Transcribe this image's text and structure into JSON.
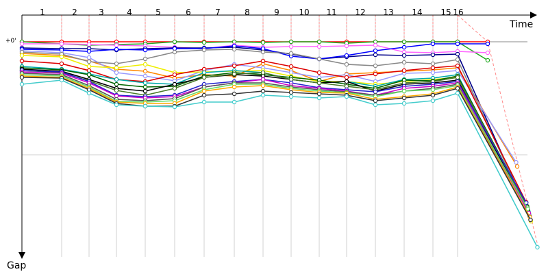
{
  "chart_data": {
    "type": "line",
    "title": "",
    "xlabel": "Time",
    "ylabel": "Gap",
    "zero_label": "+0'",
    "lap_labels": [
      "1",
      "2",
      "3",
      "4",
      "5",
      "6",
      "7",
      "8",
      "9",
      "10",
      "11",
      "12",
      "13",
      "14",
      "15",
      "16"
    ],
    "grid": true,
    "ylim": [
      0,
      3
    ],
    "leader_series_color": "#ff8888",
    "series": [
      {
        "color": "#ff0000",
        "values": [
          0.0,
          0.0,
          0.0,
          0.0,
          0.0,
          0.0,
          0.0,
          0.0,
          0.0,
          0.0,
          0.0,
          0.0,
          0.0,
          0.0,
          0.0,
          0.0,
          0.0
        ]
      },
      {
        "color": "#22aa22",
        "values": [
          0.0,
          0.03,
          0.05,
          0.04,
          0.03,
          0.0,
          0.01,
          0.0,
          0.01,
          0.0,
          0.0,
          0.02,
          0.0,
          0.0,
          0.0,
          0.0,
          0.27
        ]
      },
      {
        "color": "#ff66ff",
        "values": [
          0.03,
          0.03,
          0.04,
          0.05,
          0.06,
          0.08,
          0.1,
          0.05,
          0.08,
          0.07,
          0.07,
          0.06,
          0.05,
          0.15,
          0.16,
          0.14,
          0.16
        ]
      },
      {
        "color": "#000088",
        "values": [
          0.09,
          0.1,
          0.1,
          0.12,
          0.1,
          0.09,
          0.09,
          0.08,
          0.12,
          0.18,
          0.25,
          0.22,
          0.19,
          0.2,
          0.19,
          0.18,
          2.55
        ]
      },
      {
        "color": "#0000ff",
        "values": [
          0.11,
          0.12,
          0.14,
          0.11,
          0.12,
          0.1,
          0.1,
          0.06,
          0.1,
          0.21,
          0.25,
          0.2,
          0.13,
          0.08,
          0.03,
          0.03,
          0.03
        ]
      },
      {
        "color": "#ff8800",
        "values": [
          0.17,
          0.2,
          0.28,
          0.4,
          0.43,
          0.53,
          0.48,
          0.5,
          0.32,
          0.42,
          0.58,
          0.47,
          0.45,
          0.43,
          0.41,
          0.38,
          1.82
        ]
      },
      {
        "color": "#9999ff",
        "values": [
          0.13,
          0.16,
          0.23,
          0.45,
          0.5,
          0.57,
          0.42,
          0.33,
          0.38,
          0.45,
          0.52,
          0.48,
          0.58,
          0.46,
          0.45,
          0.42,
          1.76
        ]
      },
      {
        "color": "#888888",
        "values": [
          0.15,
          0.18,
          0.29,
          0.32,
          0.25,
          0.15,
          0.12,
          0.11,
          0.15,
          0.17,
          0.25,
          0.33,
          0.35,
          0.3,
          0.32,
          0.26,
          2.52
        ]
      },
      {
        "color": "#eeee00",
        "values": [
          0.2,
          0.22,
          0.36,
          0.38,
          0.33,
          0.45,
          0.44,
          0.43,
          0.42,
          0.5,
          0.58,
          0.58,
          0.62,
          0.58,
          0.55,
          0.52,
          2.62
        ]
      },
      {
        "color": "#dd0000",
        "values": [
          0.28,
          0.32,
          0.42,
          0.55,
          0.58,
          0.48,
          0.4,
          0.35,
          0.28,
          0.36,
          0.45,
          0.52,
          0.47,
          0.42,
          0.38,
          0.35,
          2.34
        ]
      },
      {
        "color": "#00aaaa",
        "values": [
          0.36,
          0.4,
          0.47,
          0.55,
          0.6,
          0.62,
          0.45,
          0.42,
          0.45,
          0.55,
          0.6,
          0.58,
          0.65,
          0.55,
          0.53,
          0.48,
          2.48
        ]
      },
      {
        "color": "#006600",
        "values": [
          0.38,
          0.41,
          0.48,
          0.62,
          0.66,
          0.65,
          0.5,
          0.45,
          0.48,
          0.52,
          0.56,
          0.62,
          0.68,
          0.56,
          0.57,
          0.5,
          2.4
        ]
      },
      {
        "color": "#000000",
        "values": [
          0.4,
          0.43,
          0.55,
          0.68,
          0.72,
          0.62,
          0.52,
          0.48,
          0.5,
          0.55,
          0.6,
          0.58,
          0.72,
          0.62,
          0.6,
          0.56,
          2.45
        ]
      },
      {
        "color": "#4a7a2a",
        "values": [
          0.42,
          0.45,
          0.57,
          0.71,
          0.78,
          0.68,
          0.52,
          0.47,
          0.45,
          0.55,
          0.6,
          0.65,
          0.7,
          0.6,
          0.58,
          0.52,
          2.42
        ]
      },
      {
        "color": "#2222cc",
        "values": [
          0.42,
          0.44,
          0.58,
          0.78,
          0.8,
          0.78,
          0.62,
          0.58,
          0.55,
          0.6,
          0.67,
          0.7,
          0.73,
          0.65,
          0.62,
          0.58,
          2.35
        ]
      },
      {
        "color": "#cc00cc",
        "values": [
          0.44,
          0.46,
          0.6,
          0.79,
          0.82,
          0.8,
          0.66,
          0.6,
          0.55,
          0.64,
          0.68,
          0.72,
          0.78,
          0.68,
          0.65,
          0.6,
          2.5
        ]
      },
      {
        "color": "#555555",
        "values": [
          0.46,
          0.48,
          0.64,
          0.84,
          0.86,
          0.83,
          0.66,
          0.6,
          0.6,
          0.66,
          0.7,
          0.73,
          0.78,
          0.72,
          0.68,
          0.62,
          2.6
        ]
      },
      {
        "color": "#66dd66",
        "values": [
          0.48,
          0.5,
          0.66,
          0.87,
          0.88,
          0.86,
          0.7,
          0.62,
          0.62,
          0.68,
          0.72,
          0.74,
          0.8,
          0.72,
          0.7,
          0.64,
          2.44
        ]
      },
      {
        "color": "#ffaa00",
        "values": [
          0.5,
          0.52,
          0.68,
          0.88,
          0.9,
          0.9,
          0.72,
          0.66,
          0.64,
          0.7,
          0.74,
          0.75,
          0.84,
          0.8,
          0.76,
          0.66,
          2.56
        ]
      },
      {
        "color": "#333333",
        "values": [
          0.52,
          0.53,
          0.7,
          0.9,
          0.94,
          0.94,
          0.78,
          0.76,
          0.72,
          0.74,
          0.76,
          0.78,
          0.86,
          0.82,
          0.78,
          0.68,
          2.6
        ]
      },
      {
        "color": "#44cccc",
        "values": [
          0.62,
          0.56,
          0.75,
          0.92,
          0.94,
          0.95,
          0.88,
          0.88,
          0.78,
          0.8,
          0.82,
          0.8,
          0.92,
          0.9,
          0.86,
          0.75,
          3.0
        ]
      }
    ]
  }
}
